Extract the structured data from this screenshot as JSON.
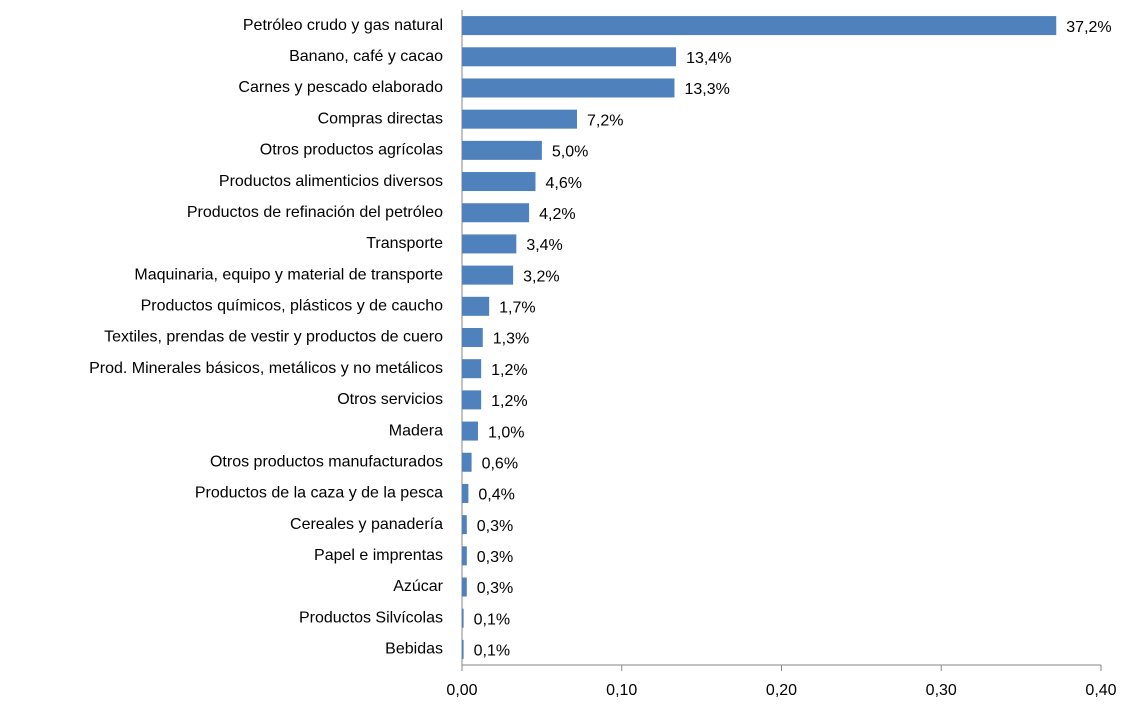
{
  "chart_data": {
    "type": "bar",
    "orientation": "horizontal",
    "color": "#4f81bd",
    "categories": [
      "Petróleo crudo y gas natural",
      "Banano, café y cacao",
      "Carnes y pescado elaborado",
      "Compras directas",
      "Otros productos  agrícolas",
      "Productos alimenticios diversos",
      "Productos de refinación del petróleo",
      "Transporte",
      "Maquinaria, equipo y material de transporte",
      "Productos químicos, plásticos y de caucho",
      "Textiles, prendas de vestir y productos de cuero",
      "Prod. Minerales básicos, metálicos y no  metálicos",
      "Otros servicios",
      "Madera",
      "Otros productos  manufacturados",
      "Productos de la caza y de la pesca",
      "Cereales y panadería",
      "Papel e imprentas",
      "Azúcar",
      "Productos Silvícolas",
      "Bebidas"
    ],
    "values": [
      0.372,
      0.134,
      0.133,
      0.072,
      0.05,
      0.046,
      0.042,
      0.034,
      0.032,
      0.017,
      0.013,
      0.012,
      0.012,
      0.01,
      0.006,
      0.004,
      0.003,
      0.003,
      0.003,
      0.001,
      0.001
    ],
    "value_labels": [
      "37,2%",
      "13,4%",
      "13,3%",
      "7,2%",
      "5,0%",
      "4,6%",
      "4,2%",
      "3,4%",
      "3,2%",
      "1,7%",
      "1,3%",
      "1,2%",
      "1,2%",
      "1,0%",
      "0,6%",
      "0,4%",
      "0,3%",
      "0,3%",
      "0,3%",
      "0,1%",
      "0,1%"
    ],
    "xlim": [
      0,
      0.4
    ],
    "xticks": [
      {
        "value": 0,
        "label": "0,00"
      },
      {
        "value": 0.1,
        "label": "0,10"
      },
      {
        "value": 0.2,
        "label": "0,20"
      },
      {
        "value": 0.3,
        "label": "0,30"
      },
      {
        "value": 0.4,
        "label": "0,40"
      }
    ]
  }
}
